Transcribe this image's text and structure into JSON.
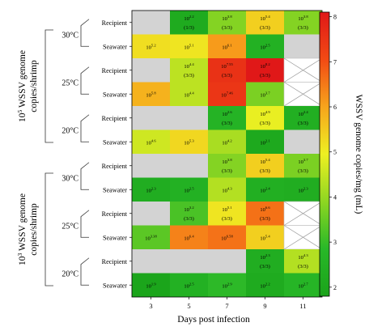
{
  "chart_data": {
    "type": "heatmap",
    "xlabel": "Days post infection",
    "colorbar_label": "WSSV genome copies/mg (mL)",
    "colorbar_range": [
      1.8,
      8.1
    ],
    "colorbar_ticks": [
      "2",
      "3",
      "4",
      "5",
      "6",
      "7",
      "8"
    ],
    "colormap": [
      "#1aa31a",
      "#28b828",
      "#8ed622",
      "#eef022",
      "#f7a41c",
      "#f24a14",
      "#e01818"
    ],
    "missing_color": "#d3d3d3",
    "x": [
      "3",
      "5",
      "7",
      "9",
      "11"
    ],
    "groups": [
      {
        "label_main": "WSSV genome",
        "label_sub": "copies/shrimp",
        "label_base": "10",
        "label_exp": "5",
        "temperatures": [
          {
            "label": "30°C",
            "rows": [
              {
                "name": "Recipient",
                "cells": [
                  {
                    "status": "missing"
                  },
                  {
                    "status": "value",
                    "value": 2.2,
                    "exp_label": "2.2",
                    "ratio": "(1/3)"
                  },
                  {
                    "status": "value",
                    "value": 3.8,
                    "exp_label": "3.8",
                    "ratio": "(3/3)"
                  },
                  {
                    "status": "value",
                    "value": 5.4,
                    "exp_label": "5.4",
                    "ratio": "(3/3)"
                  },
                  {
                    "status": "value",
                    "value": 3.8,
                    "exp_label": "3.8",
                    "ratio": "(3/3)"
                  }
                ]
              },
              {
                "name": "Seawater",
                "cells": [
                  {
                    "status": "value",
                    "value": 5.2,
                    "exp_label": "5.2"
                  },
                  {
                    "status": "value",
                    "value": 5.1,
                    "exp_label": "5.1"
                  },
                  {
                    "status": "value",
                    "value": 6.1,
                    "exp_label": "6.1"
                  },
                  {
                    "status": "value",
                    "value": 2.5,
                    "exp_label": "2.5"
                  },
                  {
                    "status": "missing"
                  }
                ]
              }
            ]
          },
          {
            "label": "25°C",
            "rows": [
              {
                "name": "Recipient",
                "cells": [
                  {
                    "status": "missing"
                  },
                  {
                    "status": "value",
                    "value": 4.4,
                    "exp_label": "4.4",
                    "ratio": "(3/3)"
                  },
                  {
                    "status": "value",
                    "value": 7.55,
                    "exp_label": "7.55",
                    "ratio": "(3/3)"
                  },
                  {
                    "status": "value",
                    "value": 8.2,
                    "exp_label": "8.2",
                    "ratio": "(3/3)"
                  },
                  {
                    "status": "cross"
                  }
                ]
              },
              {
                "name": "Seawater",
                "cells": [
                  {
                    "status": "value",
                    "value": 5.8,
                    "exp_label": "5.8"
                  },
                  {
                    "status": "value",
                    "value": 4.4,
                    "exp_label": "4.4"
                  },
                  {
                    "status": "value",
                    "value": 7.46,
                    "exp_label": "7.46"
                  },
                  {
                    "status": "value",
                    "value": 3.7,
                    "exp_label": "3.7"
                  },
                  {
                    "status": "cross"
                  }
                ]
              }
            ]
          },
          {
            "label": "20°C",
            "rows": [
              {
                "name": "Recipient",
                "cells": [
                  {
                    "status": "missing"
                  },
                  {
                    "status": "missing"
                  },
                  {
                    "status": "value",
                    "value": 2.6,
                    "exp_label": "2.6",
                    "ratio": "(3/3)"
                  },
                  {
                    "status": "value",
                    "value": 4.9,
                    "exp_label": "4.9",
                    "ratio": "(3/3)"
                  },
                  {
                    "status": "value",
                    "value": 2.4,
                    "exp_label": "2.4",
                    "ratio": "(3/3)"
                  }
                ]
              },
              {
                "name": "Seawater",
                "cells": [
                  {
                    "status": "value",
                    "value": 4.6,
                    "exp_label": "4.6"
                  },
                  {
                    "status": "value",
                    "value": 5.3,
                    "exp_label": "5.3"
                  },
                  {
                    "status": "value",
                    "value": 4.2,
                    "exp_label": "4.2"
                  },
                  {
                    "status": "value",
                    "value": 2.1,
                    "exp_label": "2.1"
                  },
                  {
                    "status": "missing"
                  }
                ]
              }
            ]
          }
        ]
      },
      {
        "label_main": "WSSV genome",
        "label_sub": "copies/shrimp",
        "label_base": "10",
        "label_exp": "3",
        "temperatures": [
          {
            "label": "30°C",
            "rows": [
              {
                "name": "Recipient",
                "cells": [
                  {
                    "status": "missing"
                  },
                  {
                    "status": "missing"
                  },
                  {
                    "status": "value",
                    "value": 3.8,
                    "exp_label": "3.8",
                    "ratio": "(3/3)"
                  },
                  {
                    "status": "value",
                    "value": 5.4,
                    "exp_label": "5.4",
                    "ratio": "(3/3)"
                  },
                  {
                    "status": "value",
                    "value": 3.7,
                    "exp_label": "3.7",
                    "ratio": "(3/3)"
                  }
                ]
              },
              {
                "name": "Seawater",
                "cells": [
                  {
                    "status": "value",
                    "value": 2.3,
                    "exp_label": "2.3"
                  },
                  {
                    "status": "value",
                    "value": 2.5,
                    "exp_label": "2.5"
                  },
                  {
                    "status": "value",
                    "value": 4.3,
                    "exp_label": "4.3"
                  },
                  {
                    "status": "value",
                    "value": 2.4,
                    "exp_label": "2.4"
                  },
                  {
                    "status": "value",
                    "value": 2.3,
                    "exp_label": "2.3"
                  }
                ]
              }
            ]
          },
          {
            "label": "25°C",
            "rows": [
              {
                "name": "Recipient",
                "cells": [
                  {
                    "status": "missing"
                  },
                  {
                    "status": "value",
                    "value": 3.2,
                    "exp_label": "3.2",
                    "ratio": "(3/3)"
                  },
                  {
                    "status": "value",
                    "value": 5.1,
                    "exp_label": "5.1",
                    "ratio": "(3/3)"
                  },
                  {
                    "status": "value",
                    "value": 6.6,
                    "exp_label": "6.6",
                    "ratio": "(3/3)"
                  },
                  {
                    "status": "cross"
                  }
                ]
              },
              {
                "name": "Seawater",
                "cells": [
                  {
                    "status": "value",
                    "value": 3.38,
                    "exp_label": "3.38"
                  },
                  {
                    "status": "value",
                    "value": 6.4,
                    "exp_label": "6.4"
                  },
                  {
                    "status": "value",
                    "value": 6.58,
                    "exp_label": "6.58"
                  },
                  {
                    "status": "value",
                    "value": 5.4,
                    "exp_label": "5.4"
                  },
                  {
                    "status": "cross"
                  }
                ]
              }
            ]
          },
          {
            "label": "20°C",
            "rows": [
              {
                "name": "Recipient",
                "cells": [
                  {
                    "status": "missing"
                  },
                  {
                    "status": "missing"
                  },
                  {
                    "status": "missing"
                  },
                  {
                    "status": "value",
                    "value": 2.3,
                    "exp_label": "2.3",
                    "ratio": "(3/3)"
                  },
                  {
                    "status": "value",
                    "value": 4.3,
                    "exp_label": "4.3",
                    "ratio": "(3/3)"
                  }
                ]
              },
              {
                "name": "Seawater",
                "cells": [
                  {
                    "status": "value",
                    "value": 1.9,
                    "exp_label": "1.9"
                  },
                  {
                    "status": "value",
                    "value": 2.5,
                    "exp_label": "2.5"
                  },
                  {
                    "status": "value",
                    "value": 2.9,
                    "exp_label": "2.9"
                  },
                  {
                    "status": "value",
                    "value": 2.2,
                    "exp_label": "2.2"
                  },
                  {
                    "status": "value",
                    "value": 2.7,
                    "exp_label": "2.7"
                  }
                ]
              }
            ]
          }
        ]
      }
    ]
  }
}
